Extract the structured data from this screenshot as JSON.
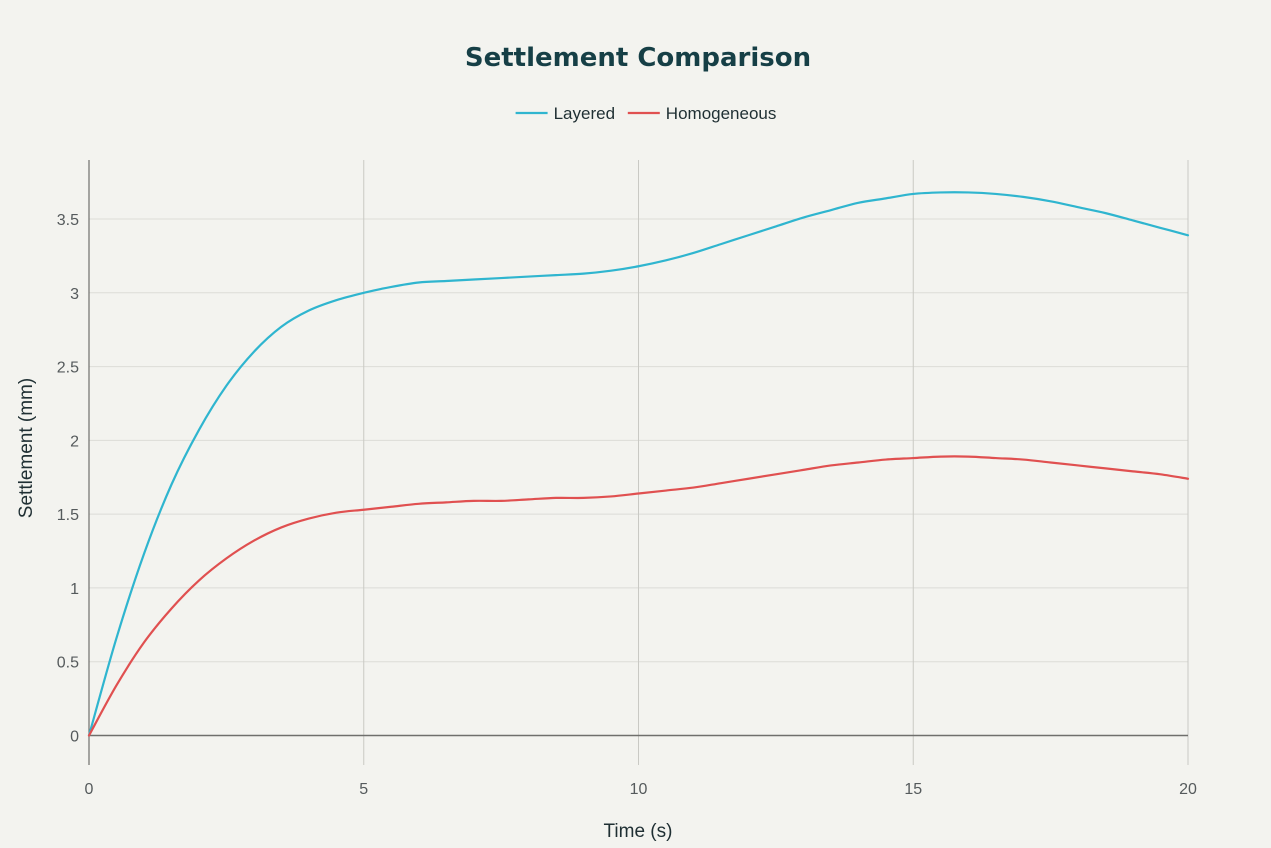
{
  "chart_data": {
    "type": "line",
    "title": "Settlement Comparison",
    "xlabel": "Time (s)",
    "ylabel": "Settlement (mm)",
    "xlim": [
      0,
      20
    ],
    "ylim": [
      -0.2,
      3.9
    ],
    "x_ticks": [
      0,
      5,
      10,
      15,
      20
    ],
    "y_ticks": [
      0,
      0.5,
      1,
      1.5,
      2,
      2.5,
      3,
      3.5
    ],
    "x_tick_labels": [
      "0",
      "5",
      "10",
      "15",
      "20"
    ],
    "y_tick_labels": [
      "0",
      "0.5",
      "1",
      "1.5",
      "2",
      "2.5",
      "3",
      "3.5"
    ],
    "grid": true,
    "legend_position": "top-center",
    "x": [
      0,
      0.5,
      1,
      1.5,
      2,
      2.5,
      3,
      3.5,
      4,
      4.5,
      5,
      5.5,
      6,
      6.5,
      7,
      7.5,
      8,
      8.5,
      9,
      9.5,
      10,
      10.5,
      11,
      11.5,
      12,
      12.5,
      13,
      13.5,
      14,
      14.5,
      15,
      15.5,
      16,
      16.5,
      17,
      17.5,
      18,
      18.5,
      19,
      19.5,
      20
    ],
    "series": [
      {
        "name": "Layered",
        "color": "#2fb5cf",
        "values": [
          0,
          0.66,
          1.23,
          1.7,
          2.07,
          2.37,
          2.6,
          2.77,
          2.88,
          2.95,
          3.0,
          3.04,
          3.07,
          3.08,
          3.09,
          3.1,
          3.11,
          3.12,
          3.13,
          3.15,
          3.18,
          3.22,
          3.27,
          3.33,
          3.39,
          3.45,
          3.51,
          3.56,
          3.61,
          3.64,
          3.67,
          3.68,
          3.68,
          3.67,
          3.65,
          3.62,
          3.58,
          3.54,
          3.49,
          3.44,
          3.39
        ]
      },
      {
        "name": "Homogeneous",
        "color": "#e05050",
        "values": [
          0,
          0.34,
          0.63,
          0.86,
          1.05,
          1.2,
          1.32,
          1.41,
          1.47,
          1.51,
          1.53,
          1.55,
          1.57,
          1.58,
          1.59,
          1.59,
          1.6,
          1.61,
          1.61,
          1.62,
          1.64,
          1.66,
          1.68,
          1.71,
          1.74,
          1.77,
          1.8,
          1.83,
          1.85,
          1.87,
          1.88,
          1.89,
          1.89,
          1.88,
          1.87,
          1.85,
          1.83,
          1.81,
          1.79,
          1.77,
          1.74
        ]
      }
    ]
  },
  "colors": {
    "background": "#f3f3ef",
    "grid": "#dcdcd7",
    "axis": "#6f6f6c",
    "title": "#163f46"
  }
}
